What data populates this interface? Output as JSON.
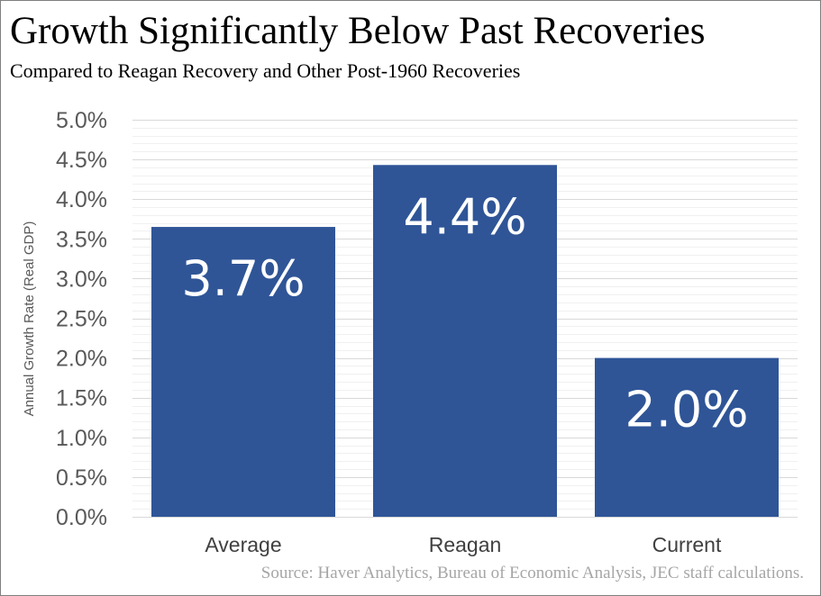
{
  "title": "Growth Significantly Below Past Recoveries",
  "subtitle": "Compared to Reagan Recovery and Other Post-1960 Recoveries",
  "source": "Source: Haver Analytics, Bureau of Economic Analysis, JEC staff calculations.",
  "colors": {
    "bar": "#2f5597",
    "gridline": "#e6e6e6",
    "axis_text": "#595959",
    "source_text": "#a6a6a6"
  },
  "chart_data": {
    "type": "bar",
    "categories": [
      "Average",
      "Reagan",
      "Current"
    ],
    "values": [
      3.65,
      4.43,
      2.0
    ],
    "data_labels": [
      "3.7%",
      "4.4%",
      "2.0%"
    ],
    "ylabel": "Annual Growth Rate (Real GDP)",
    "ylim": [
      0,
      5
    ],
    "yticks": [
      0,
      0.5,
      1,
      1.5,
      2,
      2.5,
      3,
      3.5,
      4,
      4.5,
      5
    ],
    "ytick_labels": [
      "0.0%",
      "0.5%",
      "1.0%",
      "1.5%",
      "2.0%",
      "2.5%",
      "3.0%",
      "3.5%",
      "4.0%",
      "4.5%",
      "5.0%"
    ],
    "grid": true,
    "legend": "none"
  }
}
